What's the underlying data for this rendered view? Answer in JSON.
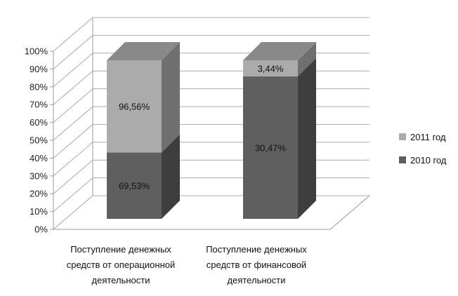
{
  "chart_data": {
    "type": "bar",
    "stacked": true,
    "stacked_percent": true,
    "three_d": true,
    "title": "",
    "xlabel": "",
    "ylabel": "",
    "ylim": [
      0,
      100
    ],
    "y_ticks": [
      "0%",
      "10%",
      "20%",
      "30%",
      "40%",
      "50%",
      "60%",
      "70%",
      "80%",
      "90%",
      "100%"
    ],
    "categories": [
      [
        "Поступление денежных",
        "средств от операционной",
        "деятельности"
      ],
      [
        "Поступление денежных",
        "средств от финансовой",
        "деятельности"
      ]
    ],
    "series": [
      {
        "name": "2010 год",
        "color": "#5f5f5f",
        "share": [
          41.86,
          89.86
        ],
        "labels": [
          "69,53%",
          "30,47%"
        ]
      },
      {
        "name": "2011 год",
        "color": "#ababab",
        "share": [
          58.14,
          10.14
        ],
        "labels": [
          "96,56%",
          "3,44%"
        ]
      }
    ],
    "legend_position": "right",
    "grid": true
  }
}
